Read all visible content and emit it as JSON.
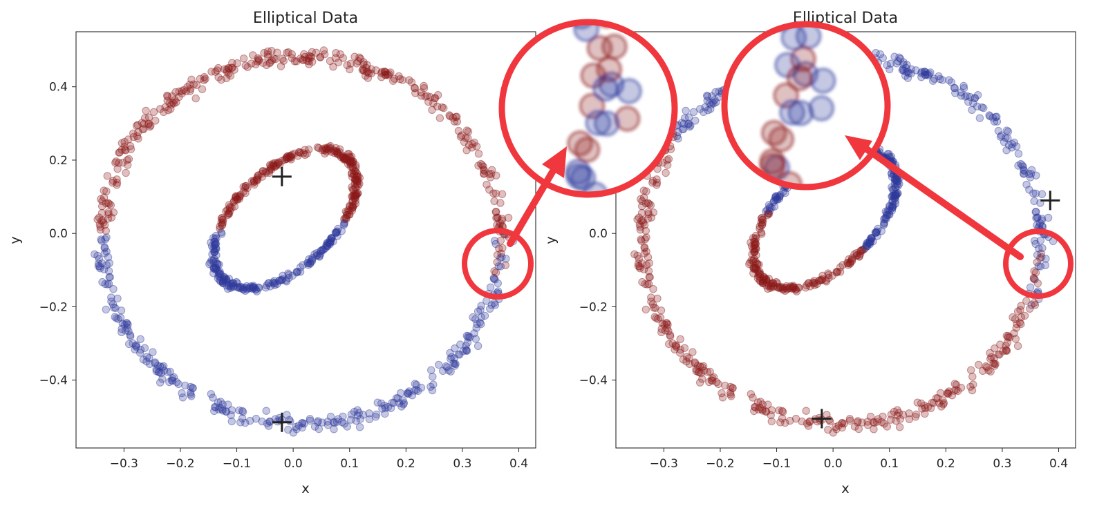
{
  "chart_data": [
    {
      "type": "scatter",
      "title": "Elliptical Data",
      "xlabel": "x",
      "ylabel": "y",
      "xlim": [
        -0.385,
        0.43
      ],
      "ylim": [
        -0.585,
        0.55
      ],
      "xticks": [
        "−0.3",
        "−0.2",
        "−0.1",
        "0.0",
        "0.1",
        "0.2",
        "0.3",
        "0.4"
      ],
      "yticks": [
        "−0.4",
        "−0.2",
        "0.0",
        "0.2",
        "0.4"
      ],
      "grid": false,
      "legend": "none",
      "outer_ellipse": {
        "cx": 0.015,
        "cy": -0.02,
        "rx": 0.355,
        "ry": 0.5
      },
      "inner_ellipse": {
        "cx": -0.015,
        "cy": 0.04,
        "rx": 0.13,
        "ry": 0.21,
        "tilt_deg": 30
      },
      "centroids": [
        {
          "x": -0.02,
          "y": 0.155
        },
        {
          "x": -0.02,
          "y": -0.515
        }
      ],
      "colors": {
        "red": "#8b1a1a",
        "blue": "#2e3a9c"
      },
      "coloring": "red = upper part (inner ring upper side, outer ring top/right); blue = lower part",
      "callout": {
        "description": "zoom circle highlighting boundary mixing on the right edge",
        "focus": {
          "x": 0.36,
          "y": -0.08
        }
      }
    },
    {
      "type": "scatter",
      "title": "Elliptical Data",
      "xlabel": "x",
      "ylabel": "y",
      "xlim": [
        -0.385,
        0.43
      ],
      "ylim": [
        -0.585,
        0.55
      ],
      "xticks": [
        "−0.3",
        "−0.2",
        "−0.1",
        "0.0",
        "0.1",
        "0.2",
        "0.3",
        "0.4"
      ],
      "yticks": [
        "−0.4",
        "−0.2",
        "0.0",
        "0.2",
        "0.4"
      ],
      "grid": false,
      "legend": "none",
      "outer_ellipse": {
        "cx": 0.015,
        "cy": -0.02,
        "rx": 0.355,
        "ry": 0.5
      },
      "inner_ellipse": {
        "cx": -0.015,
        "cy": 0.04,
        "rx": 0.13,
        "ry": 0.21,
        "tilt_deg": 30
      },
      "centroids": [
        {
          "x": 0.385,
          "y": 0.09
        },
        {
          "x": -0.02,
          "y": -0.505
        }
      ],
      "colors": {
        "red": "#8b1a1a",
        "blue": "#2e3a9c"
      },
      "coloring": "blue = top/right of outer ring and upper inner ring; red = left/bottom",
      "callout": {
        "description": "zoom circle highlighting boundary mixing on the right edge",
        "focus": {
          "x": 0.37,
          "y": -0.085
        }
      }
    }
  ],
  "style": {
    "annotation_color": "#f0373d",
    "red_point": "#8b1a1a",
    "blue_point": "#2e3a9c"
  }
}
